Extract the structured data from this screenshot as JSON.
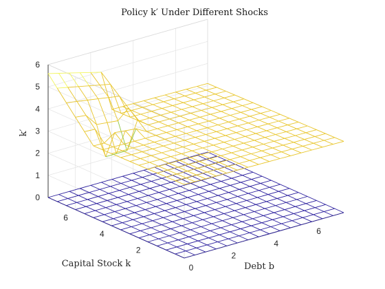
{
  "chart_data": {
    "type": "surface",
    "title": "Policy k′ Under Different Shocks",
    "xlabel": "Debt b",
    "ylabel": "Capital Stock k",
    "zlabel": "k′",
    "x_ticks": [
      "0",
      "2",
      "4",
      "6"
    ],
    "y_ticks": [
      "2",
      "4",
      "6"
    ],
    "z_ticks": [
      "0",
      "1",
      "2",
      "3",
      "4",
      "5",
      "6"
    ],
    "xlim": [
      0,
      7.5
    ],
    "ylim": [
      0,
      7.5
    ],
    "zlim": [
      0,
      6
    ],
    "grid": true,
    "colors": {
      "low": "#2b1f9e",
      "high": "#e8c52a",
      "mid": "#8fc641",
      "top": "#f2f55e"
    },
    "series": [
      {
        "description_level": "low",
        "grid_b": [
          0,
          0.5,
          1,
          1.5,
          2,
          2.5,
          3,
          3.5,
          4,
          4.5,
          5,
          5.5,
          6,
          6.5,
          7,
          7.5
        ],
        "grid_k": [
          0,
          0.5,
          1,
          1.5,
          2,
          2.5,
          3,
          3.5,
          4,
          4.5,
          5,
          5.5,
          6,
          6.5,
          7,
          7.5
        ],
        "value": 0
      },
      {
        "description_level": "high",
        "grid_b": [
          0,
          0.5,
          1,
          1.5,
          2,
          2.5,
          3,
          3.5,
          4,
          4.5,
          5,
          5.5,
          6,
          6.5,
          7,
          7.5
        ],
        "grid_k": [
          0,
          0.5,
          1,
          1.5,
          2,
          2.5,
          3,
          3.5,
          4,
          4.5,
          5,
          5.5,
          6,
          6.5,
          7,
          7.5
        ],
        "base_value": 3.2,
        "peak_value": 5.6,
        "dip_value": 2.3
      }
    ]
  }
}
